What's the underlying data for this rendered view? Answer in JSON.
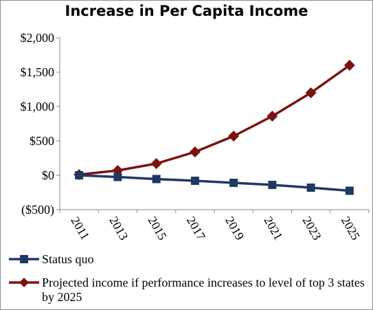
{
  "chart_data": {
    "type": "line",
    "title": "Increase in Per Capita Income",
    "xlabel": "",
    "ylabel": "",
    "x": [
      "2011",
      "2013",
      "2015",
      "2017",
      "2019",
      "2021",
      "2023",
      "2025"
    ],
    "y_ticks": [
      "$2,000",
      "$1,500",
      "$1,000",
      "$500",
      "$0",
      "($500)"
    ],
    "ylim": [
      -500,
      2000
    ],
    "grid": false,
    "legend_position": "bottom",
    "series": [
      {
        "name": "Status quo",
        "color": "#1f3864",
        "marker": "square",
        "values": [
          0,
          -25,
          -55,
          -80,
          -110,
          -140,
          -180,
          -225
        ]
      },
      {
        "name": "Projected income if performance increases to level of top 3 states by 2025",
        "color": "#7a1212",
        "marker": "diamond",
        "values": [
          10,
          70,
          170,
          340,
          570,
          860,
          1200,
          1600
        ]
      }
    ]
  }
}
